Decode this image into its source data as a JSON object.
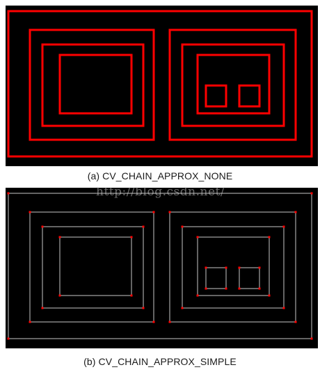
{
  "figure": {
    "caption_a": "(a) CV_CHAIN_APPROX_NONE",
    "caption_b": "(b) CV_CHAIN_APPROX_SIMPLE",
    "watermark": "http://blog.csdn.net/"
  },
  "colors": {
    "background": "#000000",
    "none_contour": "#ff0000",
    "simple_contour": "#c8c8c8",
    "simple_vertex": "#ff0000"
  }
}
